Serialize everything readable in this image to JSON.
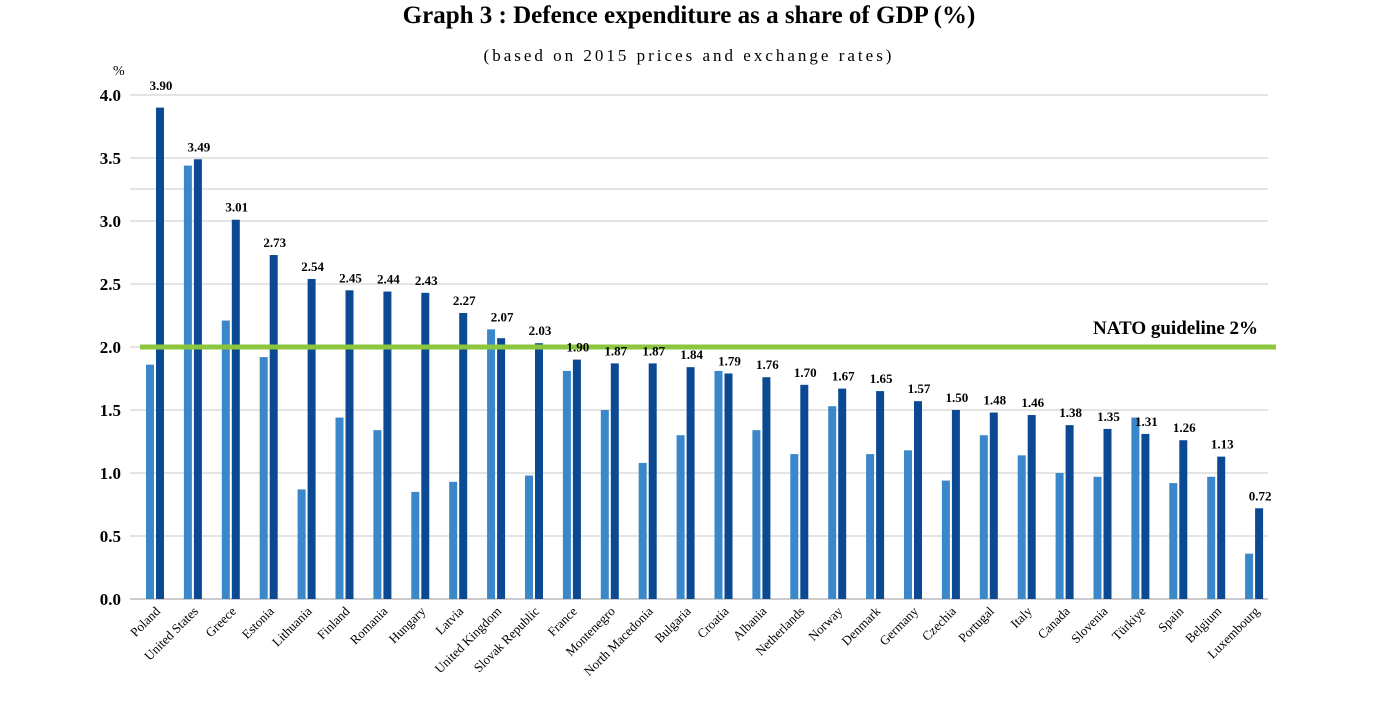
{
  "chart_data": {
    "type": "bar",
    "title": "Graph 3 : Defence expenditure as a share of GDP (%)",
    "subtitle": "(based on 2015 prices and exchange rates)",
    "ylabel": "%",
    "ylim": [
      0,
      4.0
    ],
    "yticks": [
      "0.0",
      "0.5",
      "1.0",
      "1.5",
      "2.0",
      "2.5",
      "3.0",
      "3.5",
      "4.0"
    ],
    "grid": true,
    "categories": [
      "Poland",
      "United States",
      "Greece",
      "Estonia",
      "Lithuania",
      "Finland",
      "Romania",
      "Hungary",
      "Latvia",
      "United Kingdom",
      "Slovak Republic",
      "France",
      "Montenegro",
      "North Macedonia",
      "Bulgaria",
      "Croatia",
      "Albania",
      "Netherlands",
      "Norway",
      "Denmark",
      "Germany",
      "Czechia",
      "Portugal",
      "Italy",
      "Canada",
      "Slovenia",
      "Türkiye",
      "Spain",
      "Belgium",
      "Luxembourg"
    ],
    "series": [
      {
        "values": [
          1.86,
          3.44,
          2.21,
          1.92,
          0.87,
          1.44,
          1.34,
          0.85,
          0.93,
          2.14,
          0.98,
          1.81,
          1.5,
          1.08,
          1.3,
          1.81,
          1.34,
          1.15,
          1.53,
          1.15,
          1.18,
          0.94,
          1.3,
          1.14,
          1.0,
          0.97,
          1.44,
          0.92,
          0.97,
          0.36
        ],
        "color": "#3a87c9"
      },
      {
        "values": [
          3.9,
          3.49,
          3.01,
          2.73,
          2.54,
          2.45,
          2.44,
          2.43,
          2.27,
          2.07,
          2.03,
          1.9,
          1.87,
          1.87,
          1.84,
          1.79,
          1.76,
          1.7,
          1.67,
          1.65,
          1.57,
          1.5,
          1.48,
          1.46,
          1.38,
          1.35,
          1.31,
          1.26,
          1.13,
          0.72
        ],
        "color": "#0b4a92"
      }
    ],
    "data_labels": [
      "3.90",
      "3.49",
      "3.01",
      "2.73",
      "2.54",
      "2.45",
      "2.44",
      "2.43",
      "2.27",
      "2.07",
      "2.03",
      "1.90",
      "1.87",
      "1.87",
      "1.84",
      "1.79",
      "1.76",
      "1.70",
      "1.67",
      "1.65",
      "1.57",
      "1.50",
      "1.48",
      "1.46",
      "1.38",
      "1.35",
      "1.31",
      "1.26",
      "1.13",
      "0.72"
    ],
    "reference_line": {
      "value": 2.0,
      "label": "NATO guideline 2%",
      "color": "#8cc63f"
    }
  }
}
